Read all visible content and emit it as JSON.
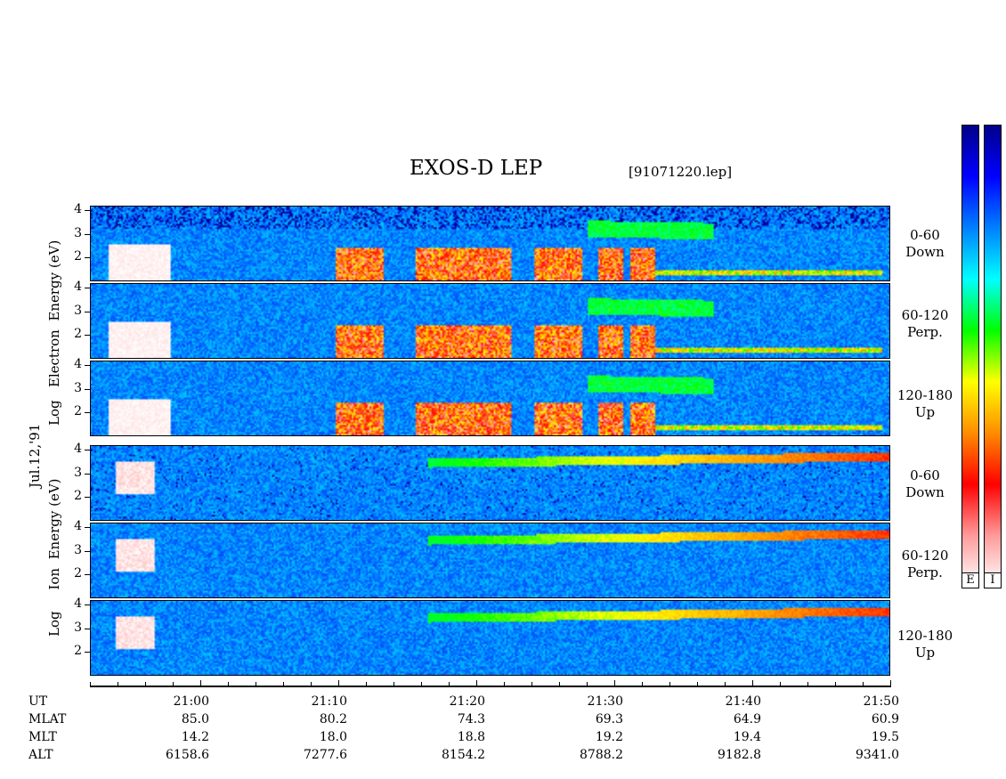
{
  "chart_data": {
    "type": "heatmap",
    "title": "EXOS-D LEP",
    "file": "[91071220.lep]",
    "date_label": "Jul.12,'91",
    "electron_ylabel": [
      "Log",
      "Electron",
      "Energy",
      "(eV)"
    ],
    "ion_ylabel": [
      "Log",
      "Ion",
      "Energy",
      "(eV)"
    ],
    "y_ticks": [
      "4",
      "3",
      "2"
    ],
    "panels": [
      {
        "species": "Electron",
        "pitch": "0-60",
        "direction": "Down"
      },
      {
        "species": "Electron",
        "pitch": "60-120",
        "direction": "Perp."
      },
      {
        "species": "Electron",
        "pitch": "120-180",
        "direction": "Up"
      },
      {
        "species": "Ion",
        "pitch": "0-60",
        "direction": "Down"
      },
      {
        "species": "Ion",
        "pitch": "60-120",
        "direction": "Perp."
      },
      {
        "species": "Ion",
        "pitch": "120-180",
        "direction": "Up"
      }
    ],
    "x_axis": {
      "row_labels": [
        "UT",
        "MLAT",
        "MLT",
        "ALT"
      ],
      "ticks": [
        {
          "UT": "21:00",
          "MLAT": "85.0",
          "MLT": "14.2",
          "ALT": "6158.6"
        },
        {
          "UT": "21:10",
          "MLAT": "80.2",
          "MLT": "18.0",
          "ALT": "7277.6"
        },
        {
          "UT": "21:20",
          "MLAT": "74.3",
          "MLT": "18.8",
          "ALT": "8154.2"
        },
        {
          "UT": "21:30",
          "MLAT": "69.3",
          "MLT": "19.2",
          "ALT": "8788.2"
        },
        {
          "UT": "21:40",
          "MLAT": "64.9",
          "MLT": "19.4",
          "ALT": "9182.8"
        },
        {
          "UT": "21:50",
          "MLAT": "60.9",
          "MLT": "19.5",
          "ALT": "9341.0"
        }
      ],
      "range_ut": [
        "20:52",
        "21:50"
      ]
    },
    "y_range": [
      1,
      4.2
    ],
    "colorbar": {
      "labels": [
        "E",
        "I"
      ],
      "colors": [
        "#ffffff",
        "#ff9a9a",
        "#ff0000",
        "#ff8c00",
        "#ffff00",
        "#00ff00",
        "#00ffff",
        "#0080ff",
        "#0000ff",
        "#00008b"
      ]
    }
  }
}
